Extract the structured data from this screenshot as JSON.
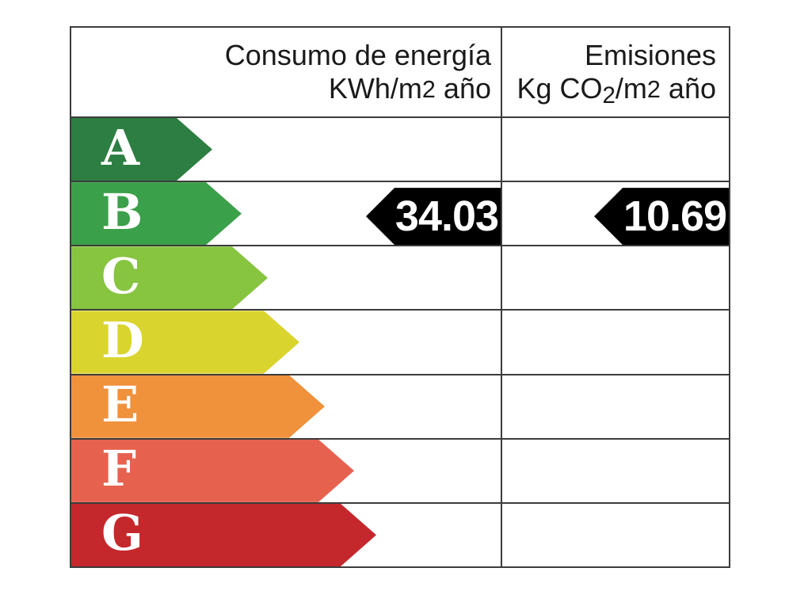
{
  "colors": {
    "background": "#ffffff",
    "grid_line": "#3c3c3c",
    "marker_background": "#000000",
    "marker_text": "#ffffff",
    "letter_text": "#ffffff",
    "header_text": "#1a1a1a"
  },
  "header": {
    "consumption_title": "Consumo de energía",
    "consumption_unit_prefix": "KWh/m",
    "consumption_unit_exp": "2",
    "consumption_unit_suffix": " año",
    "emissions_title": "Emisiones",
    "emissions_unit_prefix": "Kg CO",
    "emissions_unit_sub": "2",
    "emissions_unit_mid": "/m",
    "emissions_unit_exp": "2",
    "emissions_unit_suffix": " año"
  },
  "chart_data": {
    "type": "table",
    "columns": [
      "Consumo de energía KWh/m2 año",
      "Emisiones Kg CO2/m2 año"
    ],
    "ratings": [
      {
        "letter": "A",
        "color": "#2d7e42"
      },
      {
        "letter": "B",
        "color": "#3ba04a"
      },
      {
        "letter": "C",
        "color": "#87c440"
      },
      {
        "letter": "D",
        "color": "#dad42f"
      },
      {
        "letter": "E",
        "color": "#f0913c"
      },
      {
        "letter": "F",
        "color": "#e6624e"
      },
      {
        "letter": "G",
        "color": "#c5282c"
      }
    ],
    "assigned_rating": "B",
    "consumption_value": "34.03",
    "emissions_value": "10.69",
    "marker_color": "#000000",
    "legend_position": "none",
    "grid": "table-lines"
  }
}
